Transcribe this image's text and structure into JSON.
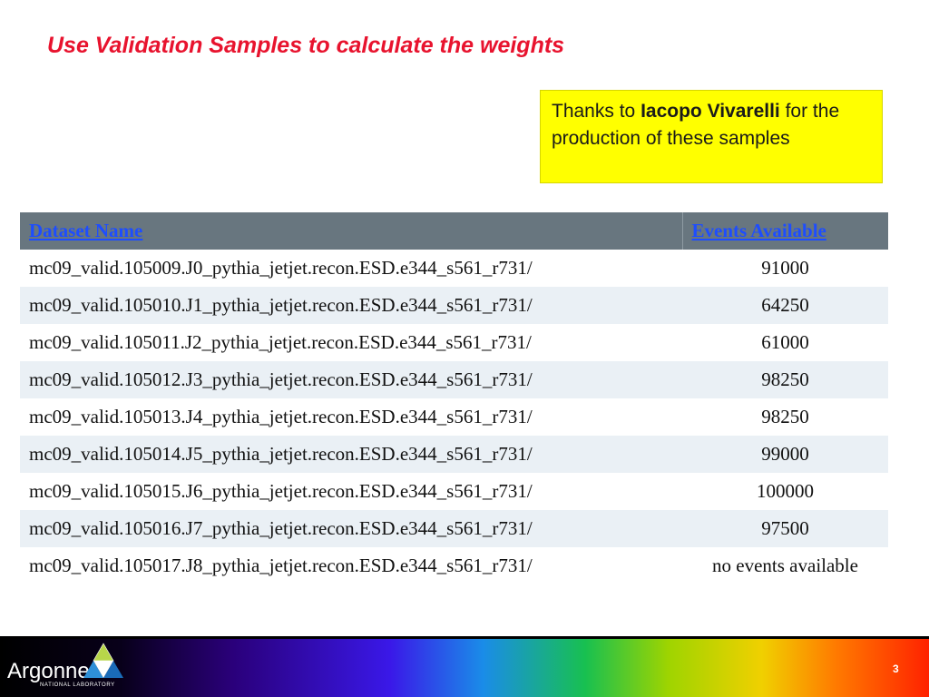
{
  "slide": {
    "title": "Use Validation Samples to calculate the weights",
    "page_number": "3"
  },
  "note": {
    "prefix": "Thanks to ",
    "person": "Iacopo Vivarelli",
    "suffix": " for the production of these samples"
  },
  "table": {
    "headers": [
      "Dataset Name",
      "Events Available"
    ],
    "rows": [
      {
        "dataset": "mc09_valid.105009.J0_pythia_jetjet.recon.ESD.e344_s561_r731/",
        "events": "91000"
      },
      {
        "dataset": "mc09_valid.105010.J1_pythia_jetjet.recon.ESD.e344_s561_r731/",
        "events": "64250"
      },
      {
        "dataset": "mc09_valid.105011.J2_pythia_jetjet.recon.ESD.e344_s561_r731/",
        "events": "61000"
      },
      {
        "dataset": "mc09_valid.105012.J3_pythia_jetjet.recon.ESD.e344_s561_r731/",
        "events": "98250"
      },
      {
        "dataset": "mc09_valid.105013.J4_pythia_jetjet.recon.ESD.e344_s561_r731/",
        "events": "98250"
      },
      {
        "dataset": "mc09_valid.105014.J5_pythia_jetjet.recon.ESD.e344_s561_r731/",
        "events": "99000"
      },
      {
        "dataset": "mc09_valid.105015.J6_pythia_jetjet.recon.ESD.e344_s561_r731/",
        "events": "100000"
      },
      {
        "dataset": "mc09_valid.105016.J7_pythia_jetjet.recon.ESD.e344_s561_r731/",
        "events": "97500"
      },
      {
        "dataset": "mc09_valid.105017.J8_pythia_jetjet.recon.ESD.e344_s561_r731/",
        "events": "no events available"
      }
    ]
  },
  "footer": {
    "logo_text": "Argonne",
    "logo_subtext": "NATIONAL LABORATORY"
  },
  "colors": {
    "title": "#e8132e",
    "note_background": "#ffff00",
    "header_background": "#68767f",
    "header_link": "#1d4dff",
    "row_alt": "#eaf0f5"
  }
}
